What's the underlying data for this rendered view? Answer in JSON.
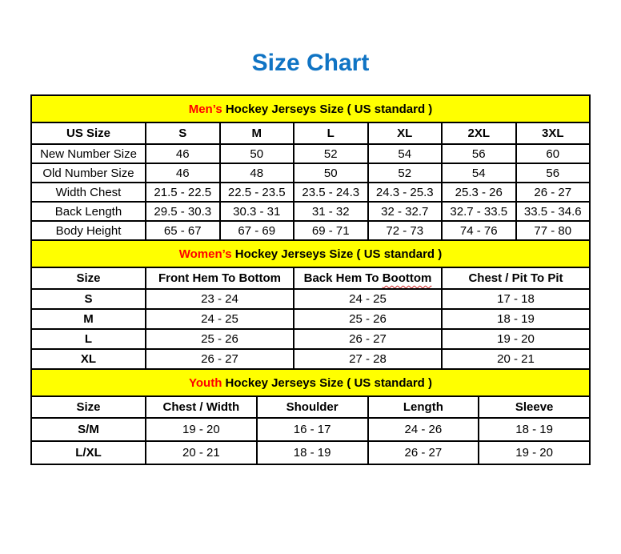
{
  "page_title": "Size Chart",
  "colors": {
    "title-blue": "#1074c4",
    "banner-yellow": "#ffff00",
    "accent-red": "#ff0000",
    "squiggle-red": "#cc2222",
    "border-black": "#000000"
  },
  "tables": [
    {
      "id": "mens",
      "label_bold": false,
      "banner": {
        "highlight": "Men’s",
        "rest": " Hockey Jerseys Size ( US standard )"
      },
      "headers": [
        {
          "text": "US Size"
        },
        {
          "text": "S"
        },
        {
          "text": "M"
        },
        {
          "text": "L"
        },
        {
          "text": "XL"
        },
        {
          "text": "2XL"
        },
        {
          "text": "3XL"
        }
      ],
      "rows": [
        {
          "label": "New Number Size",
          "values": [
            "46",
            "50",
            "52",
            "54",
            "56",
            "60"
          ]
        },
        {
          "label": "Old Number Size",
          "values": [
            "46",
            "48",
            "50",
            "52",
            "54",
            "56"
          ]
        },
        {
          "label": "Width Chest",
          "values": [
            "21.5 - 22.5",
            "22.5 - 23.5",
            "23.5 - 24.3",
            "24.3 - 25.3",
            "25.3 - 26",
            "26 - 27"
          ]
        },
        {
          "label": "Back Length",
          "values": [
            "29.5 - 30.3",
            "30.3 - 31",
            "31 - 32",
            "32 - 32.7",
            "32.7 - 33.5",
            "33.5 - 34.6"
          ]
        },
        {
          "label": "Body Height",
          "values": [
            "65 - 67",
            "67 - 69",
            "69 - 71",
            "72 - 73",
            "74 - 76",
            "77 - 80"
          ]
        }
      ]
    },
    {
      "id": "womens",
      "label_bold": true,
      "banner": {
        "highlight": "Women’s",
        "rest": " Hockey Jerseys Size ( US standard )"
      },
      "headers": [
        {
          "text": "Size"
        },
        {
          "text": "Front Hem To Bottom"
        },
        {
          "text_before": "Back Hem To ",
          "misspelled_text": "Boottom"
        },
        {
          "text": "Chest / Pit To Pit"
        }
      ],
      "rows": [
        {
          "label": "S",
          "values": [
            "23 - 24",
            "24 - 25",
            "17 - 18"
          ]
        },
        {
          "label": "M",
          "values": [
            "24 - 25",
            "25 - 26",
            "18 - 19"
          ]
        },
        {
          "label": "L",
          "values": [
            "25 - 26",
            "26 - 27",
            "19 - 20"
          ]
        },
        {
          "label": "XL",
          "values": [
            "26 - 27",
            "27 - 28",
            "20 - 21"
          ]
        }
      ]
    },
    {
      "id": "youth",
      "label_bold": true,
      "banner": {
        "highlight": "Youth",
        "rest": " Hockey Jerseys Size ( US standard )"
      },
      "headers": [
        {
          "text": "Size"
        },
        {
          "text": "Chest / Width"
        },
        {
          "text": "Shoulder"
        },
        {
          "text": "Length"
        },
        {
          "text": "Sleeve"
        }
      ],
      "rows": [
        {
          "label": "S/M",
          "values": [
            "19 - 20",
            "16 - 17",
            "24 - 26",
            "18 - 19"
          ]
        },
        {
          "label": "L/XL",
          "values": [
            "20 - 21",
            "18 - 19",
            "26 - 27",
            "19 - 20"
          ]
        }
      ]
    }
  ]
}
